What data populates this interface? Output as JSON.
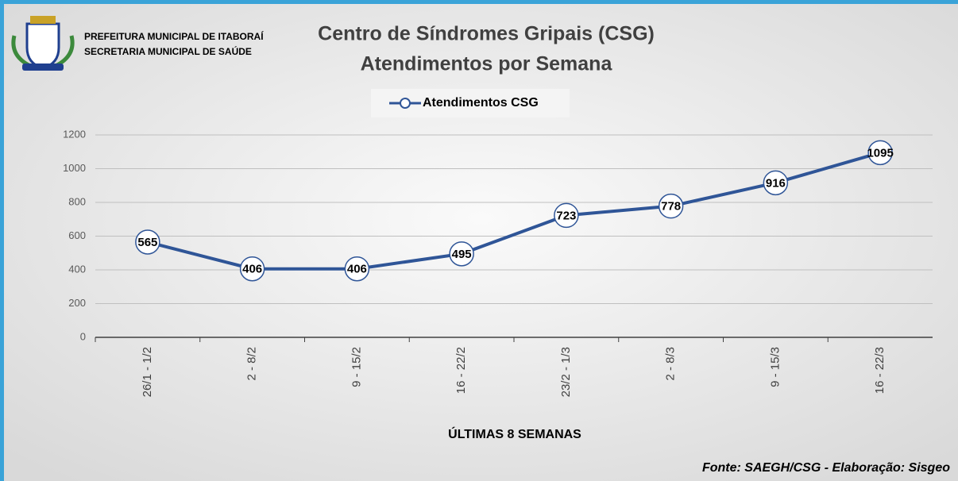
{
  "header": {
    "lines": [
      "PREFEITURA MUNICIPAL DE ITABORAÍ",
      "SECRETARIA MUNICIPAL DE SAÚDE"
    ]
  },
  "chart_data": {
    "type": "line",
    "title": "Centro de Síndromes Gripais (CSG)",
    "subtitle": "Atendimentos por Semana",
    "x_label": "ÚLTIMAS 8 SEMANAS",
    "categories": [
      "26/1 - 1/2",
      "2 - 8/2",
      "9 - 15/2",
      "16 - 22/2",
      "23/2 - 1/3",
      "2 - 8/3",
      "9 - 15/3",
      "16 - 22/3"
    ],
    "series": [
      {
        "name": "Atendimentos CSG",
        "color": "#2f5597",
        "values": [
          565,
          406,
          406,
          495,
          723,
          778,
          916,
          1095
        ]
      }
    ],
    "ylim": [
      0,
      1200
    ],
    "yticks": [
      0,
      200,
      400,
      600,
      800,
      1000,
      1200
    ],
    "grid": true,
    "legend": "top",
    "source": "Fonte: SAEGH/CSG - Elaboração: Sisgeo"
  }
}
